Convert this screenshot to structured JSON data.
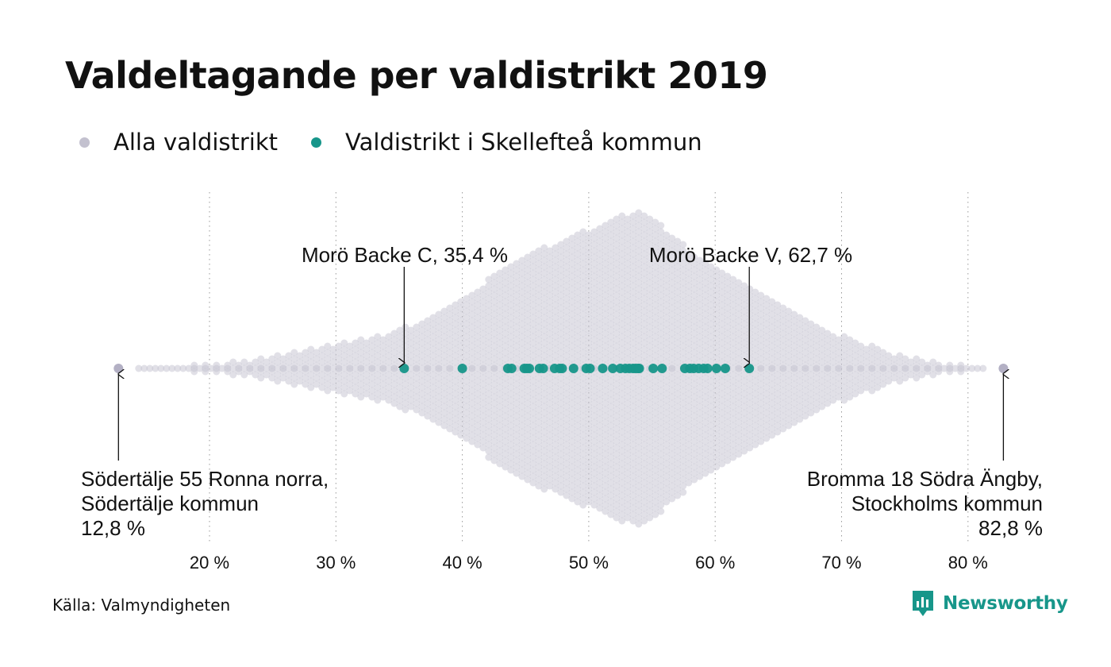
{
  "title": "Valdeltagande per valdistrikt 2019",
  "legend": [
    {
      "label": "Alla valdistrikt",
      "color": "#c3c1cf"
    },
    {
      "label": "Valdistrikt i Skellefteå kommun",
      "color": "#17968a"
    }
  ],
  "source": "Källa: Valmyndigheten",
  "brand": {
    "name": "Newsworthy",
    "color": "#17968a",
    "icon": "newsworthy-logo-icon"
  },
  "chart_data": {
    "type": "scatter",
    "title": "Valdeltagande per valdistrikt 2019",
    "xlabel": "",
    "ylabel": "",
    "x_unit": "%",
    "xlim": [
      12,
      84
    ],
    "xticks": [
      20,
      30,
      40,
      50,
      60,
      70,
      80
    ],
    "xtick_labels": [
      "20 %",
      "30 %",
      "40 %",
      "50 %",
      "60 %",
      "70 %",
      "80 %"
    ],
    "grid": "vertical dotted",
    "legend_position": "top-left",
    "distribution_shape": "beeswarm, peak density around 54 %",
    "series": [
      {
        "name": "Alla valdistrikt",
        "color": "#c3c1cf",
        "values_sample": [
          12.8,
          15.6,
          16.4,
          17.2,
          18.0,
          19.2,
          20.3,
          21.1,
          22.0,
          23.2,
          24.1,
          25.0,
          26.0,
          27.2,
          28.4,
          29.5,
          30.8,
          32.0,
          33.4,
          35.0,
          37.0,
          39.0,
          41.0,
          43.0,
          45.0,
          47.0,
          49.0,
          51.0,
          53.0,
          54.0,
          55.0,
          57.0,
          59.0,
          61.0,
          63.0,
          65.0,
          67.0,
          69.0,
          71.0,
          73.0,
          75.0,
          77.0,
          78.2,
          79.5,
          80.6,
          81.5,
          82.8
        ]
      },
      {
        "name": "Valdistrikt i Skellefteå kommun",
        "color": "#17968a",
        "values": [
          35.4,
          40.0,
          43.6,
          43.9,
          44.9,
          45.1,
          45.3,
          46.1,
          46.4,
          47.3,
          47.7,
          47.9,
          48.8,
          49.8,
          50.1,
          51.1,
          51.9,
          52.5,
          52.9,
          53.2,
          53.5,
          53.7,
          53.9,
          54.0,
          55.1,
          55.8,
          57.6,
          58.0,
          58.3,
          58.7,
          59.1,
          59.4,
          60.1,
          60.8,
          62.7
        ]
      }
    ],
    "annotations": [
      {
        "lines": [
          "Morö Backe C, 35,4 %"
        ],
        "x": 35.4,
        "series": "Valdistrikt i Skellefteå kommun"
      },
      {
        "lines": [
          "Morö Backe V, 62,7 %"
        ],
        "x": 62.7,
        "series": "Valdistrikt i Skellefteå kommun"
      },
      {
        "lines": [
          "Södertälje 55 Ronna norra,",
          "Södertälje kommun",
          "12,8 %"
        ],
        "x": 12.8,
        "series": "Alla valdistrikt"
      },
      {
        "lines": [
          "Bromma 18 Södra Ängby,",
          "Stockholms kommun",
          "82,8 %"
        ],
        "x": 82.8,
        "series": "Alla valdistrikt"
      }
    ]
  }
}
